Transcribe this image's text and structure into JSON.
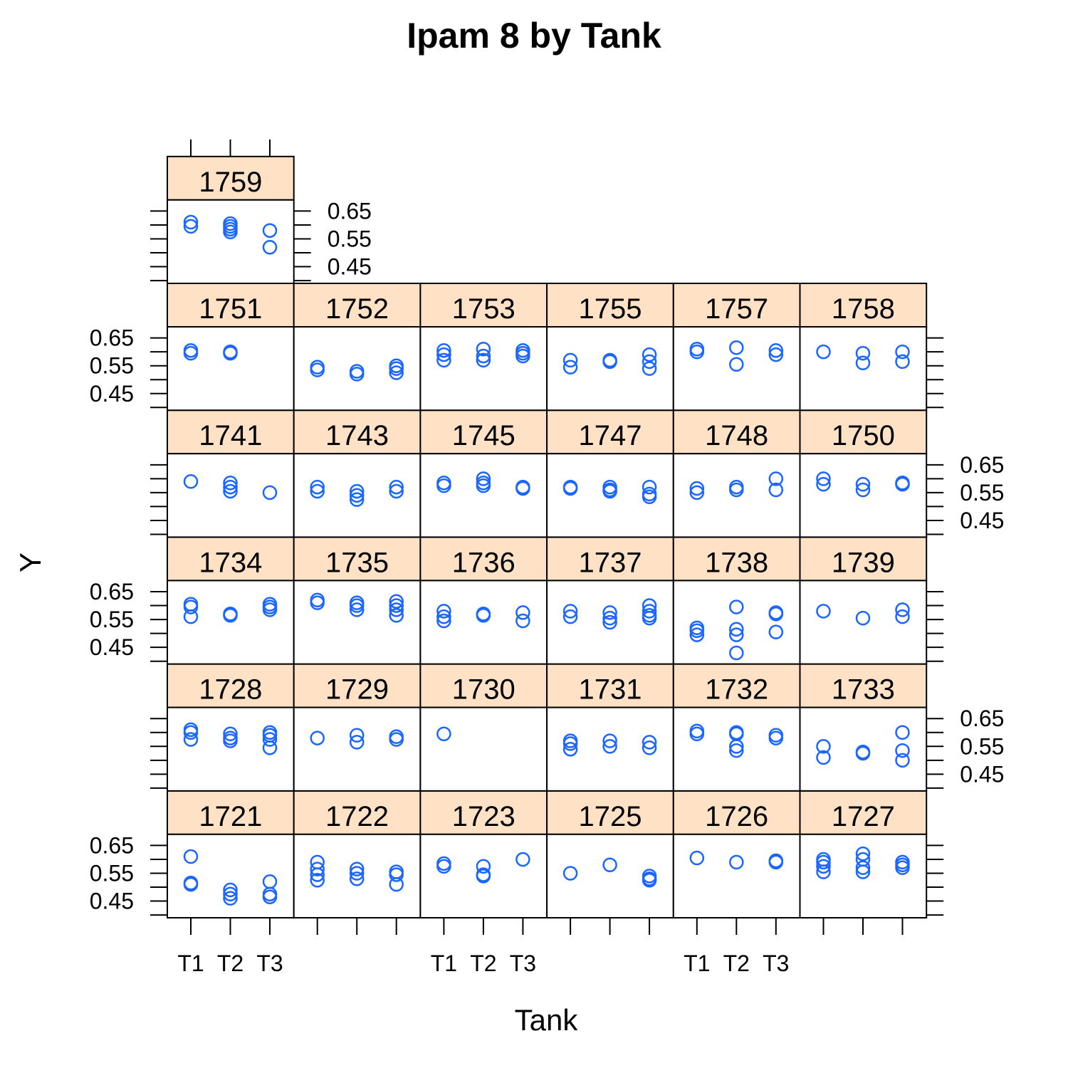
{
  "chart_data": {
    "type": "scatter",
    "title": "Ipam 8 by Tank",
    "xlabel": "Tank",
    "ylabel": "Y",
    "x_categories": [
      "T1",
      "T2",
      "T3"
    ],
    "y_ticks": [
      "0.45",
      "0.55",
      "0.65"
    ],
    "ylim": [
      0.39,
      0.69
    ],
    "colors": {
      "points": "#1A66FF",
      "strip": "#FFE1C6",
      "frame": "#000000"
    },
    "panels": [
      {
        "label": "1721",
        "points": {
          "T1": [
            0.61,
            0.515,
            0.51
          ],
          "T2": [
            0.49,
            0.475,
            0.46
          ],
          "T3": [
            0.52,
            0.475,
            0.465
          ]
        }
      },
      {
        "label": "1722",
        "points": {
          "T1": [
            0.59,
            0.565,
            0.545,
            0.525
          ],
          "T2": [
            0.565,
            0.55,
            0.53
          ],
          "T3": [
            0.555,
            0.545,
            0.51
          ]
        }
      },
      {
        "label": "1723",
        "points": {
          "T1": [
            0.585,
            0.575
          ],
          "T2": [
            0.575,
            0.545,
            0.54
          ],
          "T3": [
            0.6
          ]
        }
      },
      {
        "label": "1725",
        "points": {
          "T1": [
            0.55
          ],
          "T2": [
            0.58
          ],
          "T3": [
            0.54,
            0.53,
            0.525
          ]
        }
      },
      {
        "label": "1726",
        "points": {
          "T1": [
            0.605
          ],
          "T2": [
            0.59
          ],
          "T3": [
            0.595,
            0.59
          ]
        }
      },
      {
        "label": "1727",
        "points": {
          "T1": [
            0.6,
            0.59,
            0.575,
            0.555
          ],
          "T2": [
            0.62,
            0.6,
            0.57,
            0.555
          ],
          "T3": [
            0.59,
            0.58,
            0.57
          ]
        }
      },
      {
        "label": "1728",
        "points": {
          "T1": [
            0.61,
            0.6,
            0.575
          ],
          "T2": [
            0.595,
            0.58,
            0.57
          ],
          "T3": [
            0.6,
            0.59,
            0.575,
            0.545
          ]
        }
      },
      {
        "label": "1729",
        "points": {
          "T1": [
            0.58
          ],
          "T2": [
            0.59,
            0.565
          ],
          "T3": [
            0.585,
            0.575
          ]
        }
      },
      {
        "label": "1730",
        "points": {
          "T1": [
            0.595
          ],
          "T2": [],
          "T3": []
        }
      },
      {
        "label": "1731",
        "points": {
          "T1": [
            0.57,
            0.56,
            0.54
          ],
          "T2": [
            0.57,
            0.55
          ],
          "T3": [
            0.565,
            0.545
          ]
        }
      },
      {
        "label": "1732",
        "points": {
          "T1": [
            0.605,
            0.595
          ],
          "T2": [
            0.6,
            0.595,
            0.55,
            0.535
          ],
          "T3": [
            0.59,
            0.58
          ]
        }
      },
      {
        "label": "1733",
        "points": {
          "T1": [
            0.55,
            0.51
          ],
          "T2": [
            0.53,
            0.525
          ],
          "T3": [
            0.6,
            0.535,
            0.5
          ]
        }
      },
      {
        "label": "1734",
        "points": {
          "T1": [
            0.605,
            0.595,
            0.56
          ],
          "T2": [
            0.57,
            0.565
          ],
          "T3": [
            0.605,
            0.595,
            0.585
          ]
        }
      },
      {
        "label": "1735",
        "points": {
          "T1": [
            0.62,
            0.61
          ],
          "T2": [
            0.61,
            0.6,
            0.585
          ],
          "T3": [
            0.615,
            0.6,
            0.585,
            0.565
          ]
        }
      },
      {
        "label": "1736",
        "points": {
          "T1": [
            0.58,
            0.56,
            0.545
          ],
          "T2": [
            0.57,
            0.565
          ],
          "T3": [
            0.575,
            0.545
          ]
        }
      },
      {
        "label": "1737",
        "points": {
          "T1": [
            0.58,
            0.56
          ],
          "T2": [
            0.575,
            0.555,
            0.54
          ],
          "T3": [
            0.6,
            0.58,
            0.565,
            0.555
          ]
        }
      },
      {
        "label": "1738",
        "points": {
          "T1": [
            0.52,
            0.51,
            0.495
          ],
          "T2": [
            0.595,
            0.515,
            0.495,
            0.43
          ],
          "T3": [
            0.575,
            0.57,
            0.505
          ]
        }
      },
      {
        "label": "1739",
        "points": {
          "T1": [
            0.58
          ],
          "T2": [
            0.555
          ],
          "T3": [
            0.585,
            0.56
          ]
        }
      },
      {
        "label": "1741",
        "points": {
          "T1": [
            0.59
          ],
          "T2": [
            0.585,
            0.57,
            0.555
          ],
          "T3": [
            0.55
          ]
        }
      },
      {
        "label": "1743",
        "points": {
          "T1": [
            0.57,
            0.555
          ],
          "T2": [
            0.555,
            0.54,
            0.525
          ],
          "T3": [
            0.57,
            0.555
          ]
        }
      },
      {
        "label": "1745",
        "points": {
          "T1": [
            0.585,
            0.575
          ],
          "T2": [
            0.6,
            0.585,
            0.575
          ],
          "T3": [
            0.57,
            0.565
          ]
        }
      },
      {
        "label": "1747",
        "points": {
          "T1": [
            0.57,
            0.565
          ],
          "T2": [
            0.57,
            0.56,
            0.555
          ],
          "T3": [
            0.57,
            0.545,
            0.535
          ]
        }
      },
      {
        "label": "1748",
        "points": {
          "T1": [
            0.565,
            0.55
          ],
          "T2": [
            0.57,
            0.56
          ],
          "T3": [
            0.6,
            0.56
          ]
        }
      },
      {
        "label": "1750",
        "points": {
          "T1": [
            0.6,
            0.58
          ],
          "T2": [
            0.58,
            0.56
          ],
          "T3": [
            0.585,
            0.58
          ]
        }
      },
      {
        "label": "1751",
        "points": {
          "T1": [
            0.605,
            0.595
          ],
          "T2": [
            0.6,
            0.595
          ],
          "T3": []
        }
      },
      {
        "label": "1752",
        "points": {
          "T1": [
            0.545,
            0.535
          ],
          "T2": [
            0.53,
            0.52
          ],
          "T3": [
            0.55,
            0.54,
            0.525
          ]
        }
      },
      {
        "label": "1753",
        "points": {
          "T1": [
            0.605,
            0.59,
            0.57
          ],
          "T2": [
            0.61,
            0.585,
            0.57
          ],
          "T3": [
            0.605,
            0.595,
            0.585
          ]
        }
      },
      {
        "label": "1755",
        "points": {
          "T1": [
            0.57,
            0.545
          ],
          "T2": [
            0.57,
            0.565
          ],
          "T3": [
            0.59,
            0.565,
            0.54
          ]
        }
      },
      {
        "label": "1757",
        "points": {
          "T1": [
            0.61,
            0.6
          ],
          "T2": [
            0.615,
            0.555
          ],
          "T3": [
            0.605,
            0.59
          ]
        }
      },
      {
        "label": "1758",
        "points": {
          "T1": [
            0.6
          ],
          "T2": [
            0.595,
            0.56
          ],
          "T3": [
            0.6,
            0.565
          ]
        }
      },
      {
        "label": "1759",
        "points": {
          "T1": [
            0.61,
            0.595
          ],
          "T2": [
            0.605,
            0.595,
            0.585,
            0.575
          ],
          "T3": [
            0.58,
            0.52
          ]
        }
      }
    ]
  }
}
